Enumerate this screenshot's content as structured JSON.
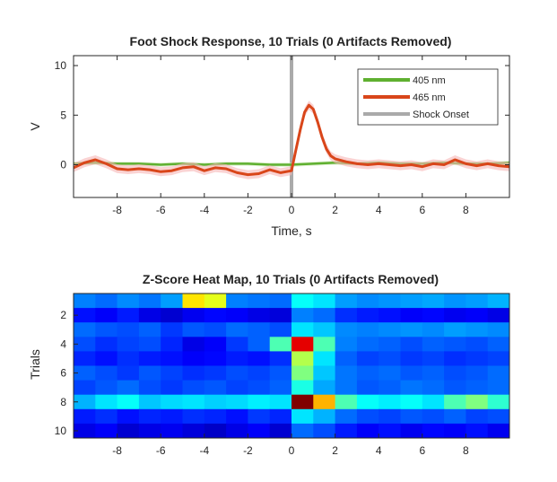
{
  "chart_data": [
    {
      "type": "line",
      "title": "Foot Shock Response, 10 Trials (0 Artifacts Removed)",
      "xlabel": "Time, s",
      "ylabel": "V",
      "xlim": [
        -10,
        10
      ],
      "ylim": [
        -3.3,
        11
      ],
      "xticks": [
        -8,
        -6,
        -4,
        -2,
        0,
        2,
        4,
        6,
        8
      ],
      "yticks": [
        0,
        5,
        10
      ],
      "grid": false,
      "legend_position": "top-right",
      "series": [
        {
          "name": "405 nm",
          "color": "#5fb030",
          "x": [
            -10,
            -9,
            -8,
            -7,
            -6,
            -5,
            -4,
            -3,
            -2,
            -1,
            0,
            1,
            2,
            3,
            4,
            5,
            6,
            7,
            8,
            9,
            10
          ],
          "values": [
            0.1,
            0.2,
            0.1,
            0.1,
            0.0,
            0.1,
            0.0,
            0.1,
            0.1,
            0.0,
            0.0,
            0.1,
            0.2,
            0.1,
            0.2,
            0.1,
            0.1,
            0.2,
            0.1,
            0.1,
            0.2
          ]
        },
        {
          "name": "465 nm",
          "color": "#d9461a",
          "x": [
            -10,
            -9.5,
            -9,
            -8.5,
            -8,
            -7.5,
            -7,
            -6.5,
            -6,
            -5.5,
            -5,
            -4.5,
            -4,
            -3.5,
            -3,
            -2.5,
            -2,
            -1.5,
            -1,
            -0.5,
            0,
            0.2,
            0.4,
            0.6,
            0.8,
            1.0,
            1.2,
            1.4,
            1.6,
            1.8,
            2.0,
            2.5,
            3,
            3.5,
            4,
            4.5,
            5,
            5.5,
            6,
            6.5,
            7,
            7.5,
            8,
            8.5,
            9,
            9.5,
            10
          ],
          "values": [
            -0.3,
            0.2,
            0.5,
            0.1,
            -0.4,
            -0.5,
            -0.4,
            -0.5,
            -0.7,
            -0.6,
            -0.3,
            -0.2,
            -0.6,
            -0.3,
            -0.4,
            -0.8,
            -1.0,
            -0.9,
            -0.5,
            -0.8,
            -0.6,
            1.5,
            3.5,
            5.3,
            6.0,
            5.6,
            4.3,
            2.8,
            1.6,
            0.9,
            0.6,
            0.3,
            0.1,
            0.0,
            0.1,
            0.0,
            -0.1,
            0.0,
            -0.2,
            0.1,
            0.0,
            0.5,
            0.1,
            -0.1,
            0.1,
            -0.1,
            -0.2
          ]
        },
        {
          "name": "Shock Onset",
          "color": "#aaaaaa",
          "type": "vline",
          "x": [
            0
          ]
        }
      ]
    },
    {
      "type": "heatmap",
      "title": "Z-Score Heat Map, 10 Trials (0 Artifacts Removed)",
      "xlabel": "",
      "ylabel": "Trials",
      "xlim": [
        -10,
        10
      ],
      "xticks": [
        -8,
        -6,
        -4,
        -2,
        0,
        2,
        4,
        6,
        8
      ],
      "yticks": [
        2,
        4,
        6,
        8,
        10
      ],
      "colormap": "jet",
      "clim": [
        -2,
        8
      ],
      "x": [
        -10,
        -9,
        -8,
        -7,
        -6,
        -5,
        -4,
        -3,
        -2,
        -1,
        0,
        1,
        2,
        3,
        4,
        5,
        6,
        7,
        8,
        9
      ],
      "trials": [
        1,
        2,
        3,
        4,
        5,
        6,
        7,
        8,
        9,
        10
      ],
      "values": [
        [
          0.5,
          0.3,
          0.6,
          0.4,
          0.8,
          4.5,
          4.0,
          0.5,
          0.4,
          0.3,
          1.8,
          1.5,
          0.8,
          0.6,
          0.7,
          0.8,
          0.9,
          0.7,
          0.8,
          1.0
        ],
        [
          -0.6,
          -0.8,
          -0.5,
          -1.0,
          -1.2,
          -0.9,
          -0.7,
          -0.8,
          -1.0,
          -1.1,
          0.5,
          0.3,
          -0.3,
          -0.5,
          -0.6,
          -0.8,
          -0.7,
          -0.9,
          -0.8,
          -1.0
        ],
        [
          0.3,
          0.1,
          0.0,
          0.2,
          -0.2,
          0.1,
          0.0,
          0.3,
          0.2,
          0.0,
          1.5,
          1.2,
          0.6,
          0.5,
          0.6,
          0.7,
          0.6,
          0.8,
          0.7,
          0.6
        ],
        [
          0.0,
          -0.3,
          -0.1,
          0.0,
          -0.4,
          -1.0,
          -0.8,
          -0.2,
          0.2,
          2.5,
          7.0,
          2.5,
          0.5,
          0.3,
          0.2,
          0.0,
          0.2,
          0.1,
          0.0,
          0.2
        ],
        [
          -0.4,
          -0.6,
          -0.3,
          -0.5,
          -0.6,
          -0.8,
          -0.7,
          -0.5,
          -0.6,
          -0.3,
          3.5,
          1.5,
          0.2,
          -0.1,
          0.0,
          -0.2,
          -0.1,
          -0.3,
          -0.2,
          -0.1
        ],
        [
          0.2,
          0.0,
          -0.2,
          0.1,
          -0.1,
          -0.3,
          -0.2,
          0.0,
          -0.1,
          0.1,
          3.0,
          1.2,
          0.4,
          0.2,
          0.3,
          0.1,
          0.2,
          0.0,
          0.1,
          0.3
        ],
        [
          -0.1,
          0.1,
          0.3,
          0.0,
          -0.2,
          0.0,
          0.1,
          -0.1,
          0.0,
          0.2,
          2.0,
          0.9,
          0.4,
          0.1,
          0.2,
          0.4,
          0.3,
          0.1,
          0.2,
          0.3
        ],
        [
          1.0,
          1.5,
          1.8,
          1.2,
          1.4,
          1.5,
          1.3,
          1.4,
          1.6,
          1.5,
          8.0,
          5.0,
          2.5,
          1.8,
          1.6,
          1.8,
          1.5,
          2.5,
          3.0,
          2.2
        ],
        [
          -0.5,
          -0.3,
          -0.6,
          -0.4,
          -0.5,
          -0.3,
          -0.4,
          -0.6,
          -0.2,
          -0.4,
          1.5,
          1.0,
          0.3,
          0.0,
          -0.1,
          0.1,
          0.0,
          0.2,
          -0.1,
          0.0
        ],
        [
          -1.0,
          -0.8,
          -1.2,
          -1.0,
          -0.9,
          -1.1,
          -1.3,
          -1.0,
          -0.8,
          -1.2,
          0.3,
          0.0,
          -0.5,
          -0.8,
          -0.6,
          -0.9,
          -0.7,
          -0.8,
          -0.6,
          -0.9
        ]
      ]
    }
  ]
}
